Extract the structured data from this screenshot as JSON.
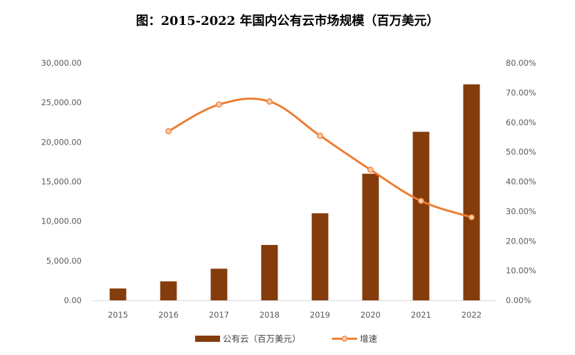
{
  "title": "图：2015-2022 年国内公有云市场规模（百万美元）",
  "colors": {
    "bar": "#843C0C",
    "line": "#ED7D31",
    "marker_fill": "#F8CBAD",
    "axis": "#D9D9D9"
  },
  "chart_data": {
    "type": "bar",
    "title": "图：2015-2022 年国内公有云市场规模（百万美元）",
    "categories": [
      "2015",
      "2016",
      "2017",
      "2018",
      "2019",
      "2020",
      "2021",
      "2022"
    ],
    "series": [
      {
        "name": "公有云（百万美元）",
        "type": "bar",
        "axis": "left",
        "values": [
          1500,
          2400,
          4000,
          7000,
          11000,
          16000,
          21300,
          27300
        ]
      },
      {
        "name": "增速",
        "type": "line",
        "axis": "right",
        "values": [
          null,
          0.57,
          0.66,
          0.67,
          0.555,
          0.44,
          0.335,
          0.28
        ]
      }
    ],
    "ylim_left": [
      0,
      30000
    ],
    "yticks_left": [
      "0.00",
      "5,000.00",
      "10,000.00",
      "15,000.00",
      "20,000.00",
      "25,000.00",
      "30,000.00"
    ],
    "ylim_right": [
      0,
      0.8
    ],
    "yticks_right": [
      "0.00%",
      "10.00%",
      "20.00%",
      "30.00%",
      "40.00%",
      "50.00%",
      "60.00%",
      "70.00%",
      "80.00%"
    ],
    "grid": false,
    "legend": "bottom"
  }
}
